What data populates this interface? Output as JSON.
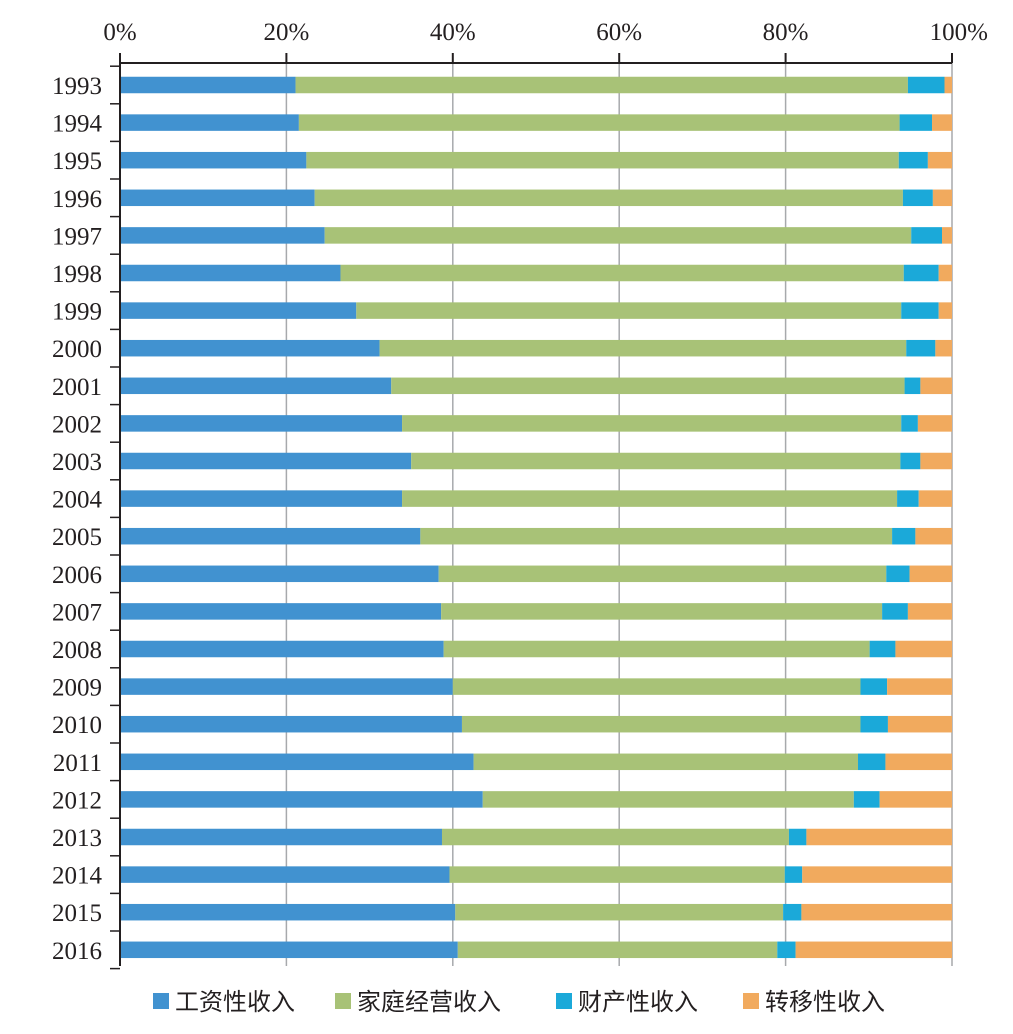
{
  "chart_data": {
    "type": "bar",
    "orientation": "horizontal",
    "stacked": true,
    "normalized": true,
    "title": "",
    "xlabel": "",
    "ylabel": "",
    "xlim": [
      0,
      100
    ],
    "x_ticks": [
      "0%",
      "20%",
      "40%",
      "60%",
      "80%",
      "100%"
    ],
    "grid": true,
    "legend_position": "bottom",
    "categories": [
      "1993",
      "1994",
      "1995",
      "1996",
      "1997",
      "1998",
      "1999",
      "2000",
      "2001",
      "2002",
      "2003",
      "2004",
      "2005",
      "2006",
      "2007",
      "2008",
      "2009",
      "2010",
      "2011",
      "2012",
      "2013",
      "2014",
      "2015",
      "2016"
    ],
    "series": [
      {
        "name": "工资性收入",
        "color": "#4192d0",
        "values": [
          21.1,
          21.5,
          22.4,
          23.4,
          24.6,
          26.5,
          28.4,
          31.2,
          32.6,
          33.9,
          35.0,
          33.9,
          36.1,
          38.3,
          38.6,
          38.9,
          40.0,
          41.1,
          42.5,
          43.6,
          38.7,
          39.6,
          40.3,
          40.6
        ],
        "colorKey": "c1"
      },
      {
        "name": "家庭经营收入",
        "color": "#a8c277",
        "values": [
          73.6,
          72.2,
          71.2,
          70.7,
          70.5,
          67.7,
          65.5,
          63.3,
          61.7,
          60.0,
          58.8,
          59.5,
          56.7,
          53.8,
          53.0,
          51.2,
          49.0,
          47.9,
          46.2,
          44.6,
          41.7,
          40.3,
          39.4,
          38.4
        ],
        "colorKey": "c2"
      },
      {
        "name": "财产性收入",
        "color": "#1ba9d9",
        "values": [
          4.4,
          3.9,
          3.5,
          3.6,
          3.7,
          4.2,
          4.5,
          3.5,
          1.9,
          2.0,
          2.4,
          2.6,
          2.8,
          2.8,
          3.1,
          3.1,
          3.2,
          3.3,
          3.3,
          3.1,
          2.1,
          2.1,
          2.2,
          2.2
        ],
        "colorKey": "c3"
      },
      {
        "name": "转移性收入",
        "color": "#f1aa5e",
        "values": [
          0.9,
          2.4,
          2.9,
          2.3,
          1.2,
          1.6,
          1.6,
          2.0,
          3.8,
          4.1,
          3.8,
          4.0,
          4.4,
          5.1,
          5.3,
          6.8,
          7.8,
          7.7,
          8.0,
          8.7,
          17.5,
          18.0,
          18.1,
          18.8
        ],
        "colorKey": "c4"
      }
    ]
  }
}
